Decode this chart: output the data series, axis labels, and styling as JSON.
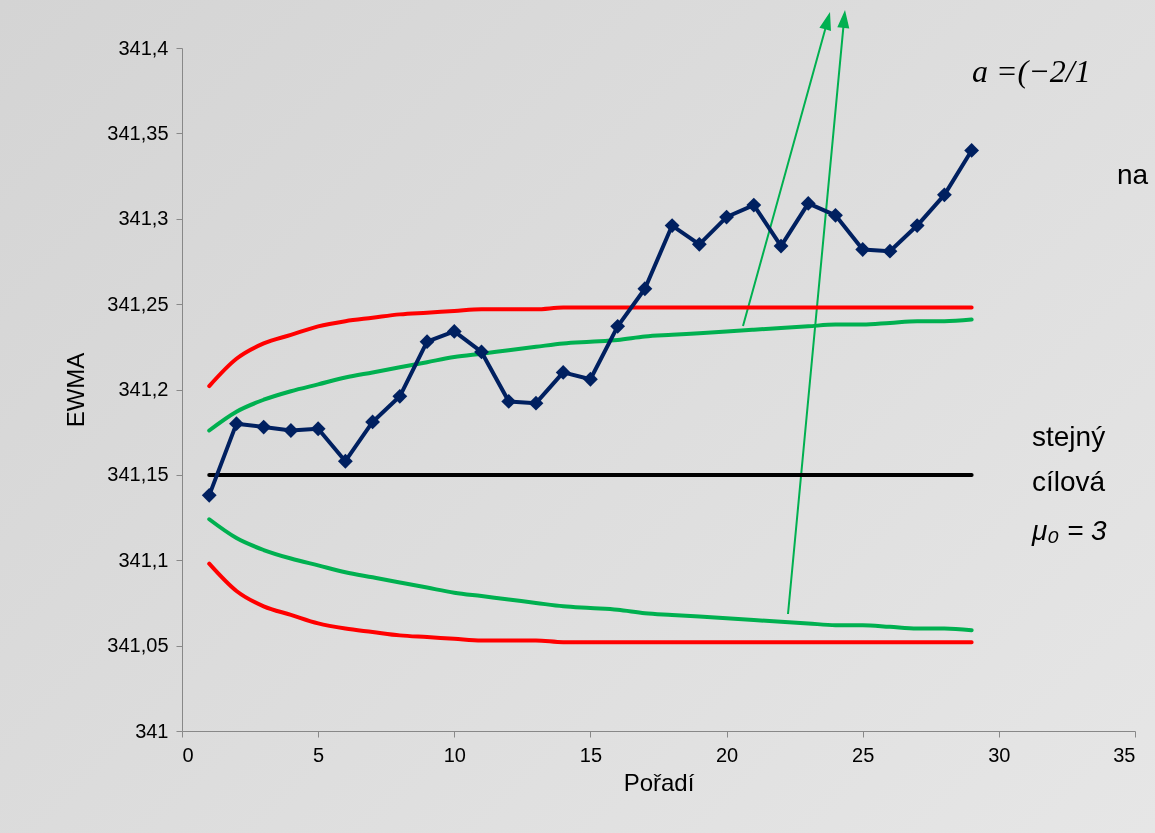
{
  "chart_data": {
    "type": "line",
    "xlabel": "Pořadí",
    "ylabel": "EWMA",
    "x": [
      1,
      2,
      3,
      4,
      5,
      6,
      7,
      8,
      9,
      10,
      11,
      12,
      13,
      14,
      15,
      16,
      17,
      18,
      19,
      20,
      21,
      22,
      23,
      24,
      25,
      26,
      27,
      28,
      29
    ],
    "series": [
      {
        "color": "#ff0000",
        "marker": "none",
        "values": [
          341.202,
          341.218,
          341.227,
          341.232,
          341.237,
          341.24,
          341.242,
          341.244,
          341.245,
          341.246,
          341.247,
          341.247,
          341.247,
          341.248,
          341.248,
          341.248,
          341.248,
          341.248,
          341.248,
          341.248,
          341.248,
          341.248,
          341.248,
          341.248,
          341.248,
          341.248,
          341.248,
          341.248,
          341.248
        ]
      },
      {
        "color": "#ff0000",
        "marker": "none",
        "values": [
          341.098,
          341.082,
          341.073,
          341.068,
          341.063,
          341.06,
          341.058,
          341.056,
          341.055,
          341.054,
          341.053,
          341.053,
          341.053,
          341.052,
          341.052,
          341.052,
          341.052,
          341.052,
          341.052,
          341.052,
          341.052,
          341.052,
          341.052,
          341.052,
          341.052,
          341.052,
          341.052,
          341.052,
          341.052
        ]
      },
      {
        "color": "#00b050",
        "marker": "none",
        "values": [
          341.176,
          341.187,
          341.194,
          341.199,
          341.203,
          341.207,
          341.21,
          341.213,
          341.216,
          341.219,
          341.221,
          341.223,
          341.225,
          341.227,
          341.228,
          341.229,
          341.231,
          341.232,
          341.233,
          341.234,
          341.235,
          341.236,
          341.237,
          341.238,
          341.238,
          341.239,
          341.24,
          341.24,
          341.241
        ]
      },
      {
        "color": "#00b050",
        "marker": "none",
        "values": [
          341.124,
          341.113,
          341.106,
          341.101,
          341.097,
          341.093,
          341.09,
          341.087,
          341.084,
          341.081,
          341.079,
          341.077,
          341.075,
          341.073,
          341.072,
          341.071,
          341.069,
          341.068,
          341.067,
          341.066,
          341.065,
          341.064,
          341.063,
          341.062,
          341.062,
          341.061,
          341.06,
          341.06,
          341.059
        ]
      },
      {
        "color": "#000000",
        "marker": "none",
        "values": [
          341.15,
          341.15,
          341.15,
          341.15,
          341.15,
          341.15,
          341.15,
          341.15,
          341.15,
          341.15,
          341.15,
          341.15,
          341.15,
          341.15,
          341.15,
          341.15,
          341.15,
          341.15,
          341.15,
          341.15,
          341.15,
          341.15,
          341.15,
          341.15,
          341.15,
          341.15,
          341.15,
          341.15,
          341.15
        ]
      },
      {
        "color": "#002060",
        "marker": "diamond",
        "values": [
          341.138,
          341.18,
          341.178,
          341.176,
          341.177,
          341.158,
          341.181,
          341.196,
          341.228,
          341.234,
          341.222,
          341.193,
          341.192,
          341.21,
          341.206,
          341.237,
          341.259,
          341.296,
          341.285,
          341.301,
          341.308,
          341.284,
          341.309,
          341.302,
          341.282,
          341.281,
          341.296,
          341.314,
          341.34
        ]
      }
    ],
    "xlim": [
      0,
      35
    ],
    "xticks": [
      0,
      5,
      10,
      15,
      20,
      25,
      30,
      35
    ],
    "ylim": [
      341,
      341.4
    ],
    "yticks": [
      {
        "value": 341,
        "label": "341"
      },
      {
        "value": 341.05,
        "label": "341,05"
      },
      {
        "value": 341.1,
        "label": "341,1"
      },
      {
        "value": 341.15,
        "label": "341,15"
      },
      {
        "value": 341.2,
        "label": "341,2"
      },
      {
        "value": 341.25,
        "label": "341,25"
      },
      {
        "value": 341.3,
        "label": "341,3"
      },
      {
        "value": 341.35,
        "label": "341,35"
      },
      {
        "value": 341.4,
        "label": "341,4"
      }
    ],
    "grid": false,
    "annotations": [
      "a =(−2/1",
      "na",
      "stejný",
      "cílová",
      "μ₀ = 3"
    ]
  }
}
